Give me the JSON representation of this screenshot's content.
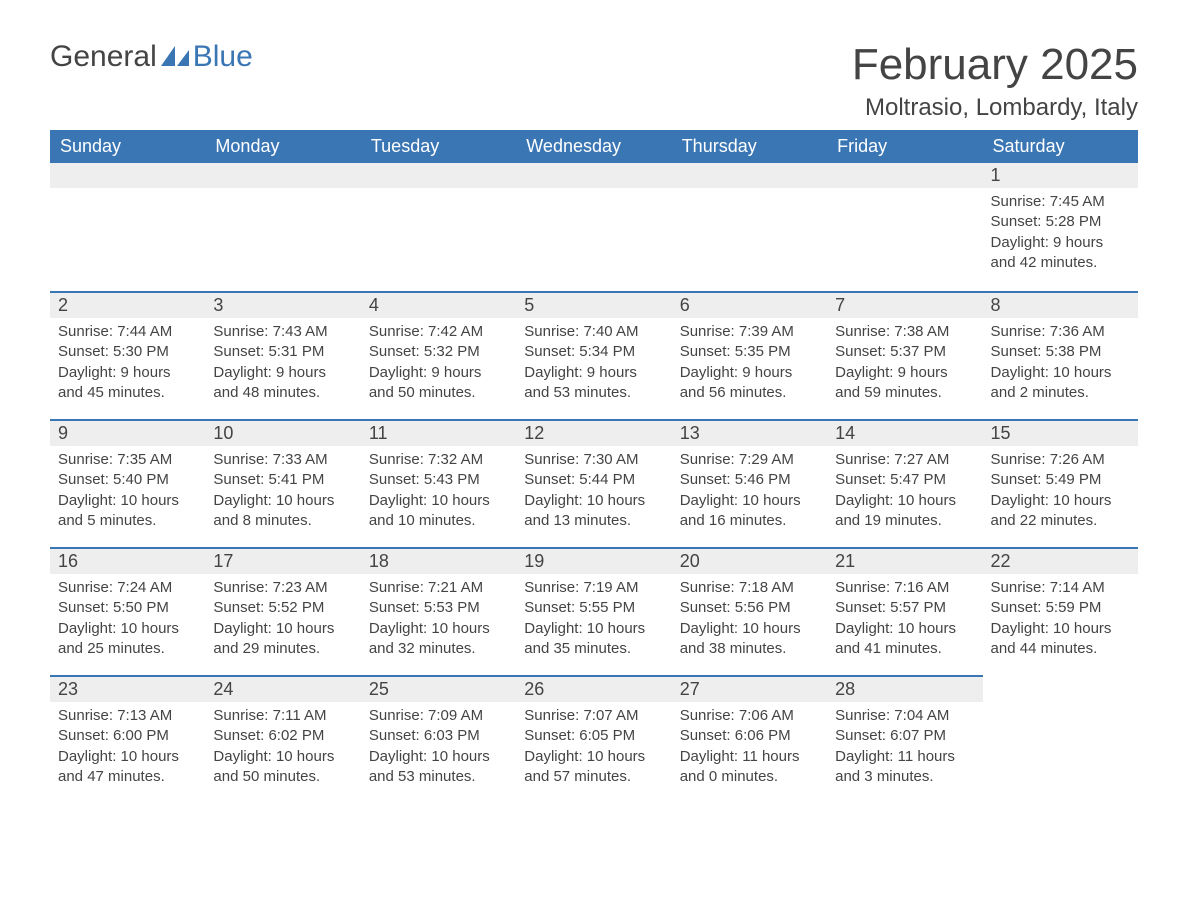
{
  "brand": {
    "part1": "General",
    "part2": "Blue"
  },
  "title": "February 2025",
  "location": "Moltrasio, Lombardy, Italy",
  "colors": {
    "header_bg": "#3a76b4",
    "header_text": "#ffffff",
    "day_bar_bg": "#eeeeee",
    "day_bar_border": "#3a76b4",
    "body_text": "#444444",
    "background": "#ffffff",
    "brand_blue": "#3a76b4"
  },
  "fonts": {
    "family": "Arial",
    "month_title_size": 44,
    "location_size": 24,
    "weekday_header_size": 18,
    "day_number_size": 18,
    "cell_text_size": 15
  },
  "weekdays": [
    "Sunday",
    "Monday",
    "Tuesday",
    "Wednesday",
    "Thursday",
    "Friday",
    "Saturday"
  ],
  "weeks": [
    [
      {
        "empty": true
      },
      {
        "empty": true
      },
      {
        "empty": true
      },
      {
        "empty": true
      },
      {
        "empty": true
      },
      {
        "empty": true
      },
      {
        "day": "1",
        "sunrise": "Sunrise: 7:45 AM",
        "sunset": "Sunset: 5:28 PM",
        "daylight": "Daylight: 9 hours and 42 minutes."
      }
    ],
    [
      {
        "day": "2",
        "sunrise": "Sunrise: 7:44 AM",
        "sunset": "Sunset: 5:30 PM",
        "daylight": "Daylight: 9 hours and 45 minutes."
      },
      {
        "day": "3",
        "sunrise": "Sunrise: 7:43 AM",
        "sunset": "Sunset: 5:31 PM",
        "daylight": "Daylight: 9 hours and 48 minutes."
      },
      {
        "day": "4",
        "sunrise": "Sunrise: 7:42 AM",
        "sunset": "Sunset: 5:32 PM",
        "daylight": "Daylight: 9 hours and 50 minutes."
      },
      {
        "day": "5",
        "sunrise": "Sunrise: 7:40 AM",
        "sunset": "Sunset: 5:34 PM",
        "daylight": "Daylight: 9 hours and 53 minutes."
      },
      {
        "day": "6",
        "sunrise": "Sunrise: 7:39 AM",
        "sunset": "Sunset: 5:35 PM",
        "daylight": "Daylight: 9 hours and 56 minutes."
      },
      {
        "day": "7",
        "sunrise": "Sunrise: 7:38 AM",
        "sunset": "Sunset: 5:37 PM",
        "daylight": "Daylight: 9 hours and 59 minutes."
      },
      {
        "day": "8",
        "sunrise": "Sunrise: 7:36 AM",
        "sunset": "Sunset: 5:38 PM",
        "daylight": "Daylight: 10 hours and 2 minutes."
      }
    ],
    [
      {
        "day": "9",
        "sunrise": "Sunrise: 7:35 AM",
        "sunset": "Sunset: 5:40 PM",
        "daylight": "Daylight: 10 hours and 5 minutes."
      },
      {
        "day": "10",
        "sunrise": "Sunrise: 7:33 AM",
        "sunset": "Sunset: 5:41 PM",
        "daylight": "Daylight: 10 hours and 8 minutes."
      },
      {
        "day": "11",
        "sunrise": "Sunrise: 7:32 AM",
        "sunset": "Sunset: 5:43 PM",
        "daylight": "Daylight: 10 hours and 10 minutes."
      },
      {
        "day": "12",
        "sunrise": "Sunrise: 7:30 AM",
        "sunset": "Sunset: 5:44 PM",
        "daylight": "Daylight: 10 hours and 13 minutes."
      },
      {
        "day": "13",
        "sunrise": "Sunrise: 7:29 AM",
        "sunset": "Sunset: 5:46 PM",
        "daylight": "Daylight: 10 hours and 16 minutes."
      },
      {
        "day": "14",
        "sunrise": "Sunrise: 7:27 AM",
        "sunset": "Sunset: 5:47 PM",
        "daylight": "Daylight: 10 hours and 19 minutes."
      },
      {
        "day": "15",
        "sunrise": "Sunrise: 7:26 AM",
        "sunset": "Sunset: 5:49 PM",
        "daylight": "Daylight: 10 hours and 22 minutes."
      }
    ],
    [
      {
        "day": "16",
        "sunrise": "Sunrise: 7:24 AM",
        "sunset": "Sunset: 5:50 PM",
        "daylight": "Daylight: 10 hours and 25 minutes."
      },
      {
        "day": "17",
        "sunrise": "Sunrise: 7:23 AM",
        "sunset": "Sunset: 5:52 PM",
        "daylight": "Daylight: 10 hours and 29 minutes."
      },
      {
        "day": "18",
        "sunrise": "Sunrise: 7:21 AM",
        "sunset": "Sunset: 5:53 PM",
        "daylight": "Daylight: 10 hours and 32 minutes."
      },
      {
        "day": "19",
        "sunrise": "Sunrise: 7:19 AM",
        "sunset": "Sunset: 5:55 PM",
        "daylight": "Daylight: 10 hours and 35 minutes."
      },
      {
        "day": "20",
        "sunrise": "Sunrise: 7:18 AM",
        "sunset": "Sunset: 5:56 PM",
        "daylight": "Daylight: 10 hours and 38 minutes."
      },
      {
        "day": "21",
        "sunrise": "Sunrise: 7:16 AM",
        "sunset": "Sunset: 5:57 PM",
        "daylight": "Daylight: 10 hours and 41 minutes."
      },
      {
        "day": "22",
        "sunrise": "Sunrise: 7:14 AM",
        "sunset": "Sunset: 5:59 PM",
        "daylight": "Daylight: 10 hours and 44 minutes."
      }
    ],
    [
      {
        "day": "23",
        "sunrise": "Sunrise: 7:13 AM",
        "sunset": "Sunset: 6:00 PM",
        "daylight": "Daylight: 10 hours and 47 minutes."
      },
      {
        "day": "24",
        "sunrise": "Sunrise: 7:11 AM",
        "sunset": "Sunset: 6:02 PM",
        "daylight": "Daylight: 10 hours and 50 minutes."
      },
      {
        "day": "25",
        "sunrise": "Sunrise: 7:09 AM",
        "sunset": "Sunset: 6:03 PM",
        "daylight": "Daylight: 10 hours and 53 minutes."
      },
      {
        "day": "26",
        "sunrise": "Sunrise: 7:07 AM",
        "sunset": "Sunset: 6:05 PM",
        "daylight": "Daylight: 10 hours and 57 minutes."
      },
      {
        "day": "27",
        "sunrise": "Sunrise: 7:06 AM",
        "sunset": "Sunset: 6:06 PM",
        "daylight": "Daylight: 11 hours and 0 minutes."
      },
      {
        "day": "28",
        "sunrise": "Sunrise: 7:04 AM",
        "sunset": "Sunset: 6:07 PM",
        "daylight": "Daylight: 11 hours and 3 minutes."
      },
      {
        "empty": true
      }
    ]
  ]
}
